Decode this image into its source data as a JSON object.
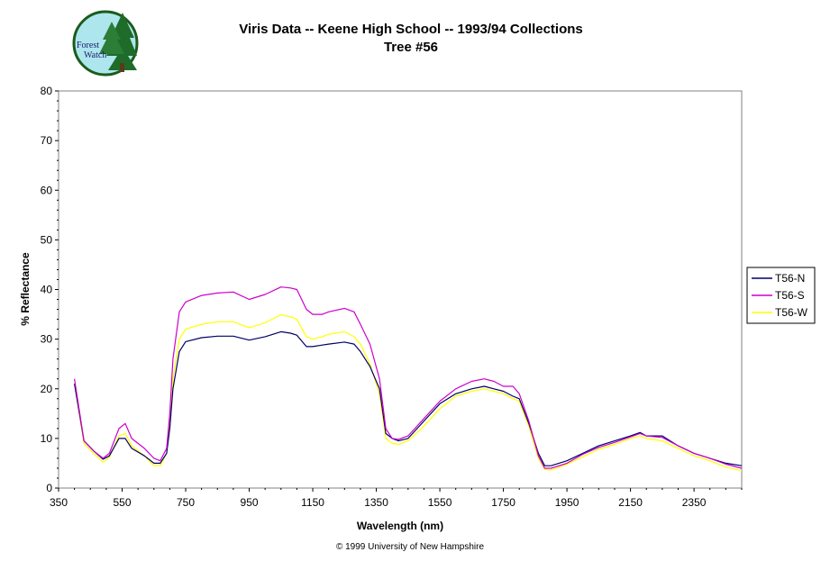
{
  "logo": {
    "line1": "Forest",
    "line2": "Watch"
  },
  "copyright": "© 1999 University of New Hampshire",
  "colors": {
    "T56-N": "#000066",
    "T56-S": "#cc00cc",
    "T56-W": "#ffff00"
  },
  "chart_data": {
    "type": "line",
    "title": "Viris Data -- Keene High School -- 1993/94 Collections",
    "subtitle": "Tree #56",
    "xlabel": "Wavelength (nm)",
    "ylabel": "% Reflectance",
    "xlim": [
      350,
      2500
    ],
    "ylim": [
      0,
      80
    ],
    "xticks": [
      350,
      550,
      750,
      950,
      1150,
      1350,
      1550,
      1750,
      1950,
      2150,
      2350
    ],
    "yticks": [
      0,
      10,
      20,
      30,
      40,
      50,
      60,
      70,
      80
    ],
    "grid": false,
    "legend_position": "right",
    "x": [
      400,
      430,
      460,
      490,
      510,
      540,
      560,
      580,
      620,
      650,
      670,
      690,
      700,
      710,
      730,
      750,
      800,
      850,
      900,
      950,
      1000,
      1050,
      1080,
      1100,
      1130,
      1150,
      1180,
      1200,
      1250,
      1280,
      1300,
      1330,
      1360,
      1380,
      1400,
      1420,
      1450,
      1500,
      1550,
      1600,
      1650,
      1690,
      1720,
      1750,
      1780,
      1800,
      1830,
      1860,
      1880,
      1900,
      1950,
      2000,
      2050,
      2100,
      2150,
      2180,
      2200,
      2250,
      2300,
      2350,
      2400,
      2450,
      2500
    ],
    "series": [
      {
        "name": "T56-N",
        "values": [
          21,
          9.5,
          7.5,
          5.8,
          6.5,
          10,
          10,
          8,
          6.5,
          5,
          5,
          7,
          12,
          20,
          27.5,
          29.5,
          30.3,
          30.6,
          30.6,
          29.8,
          30.5,
          31.5,
          31.2,
          30.8,
          28.5,
          28.5,
          28.8,
          29,
          29.4,
          29,
          27.5,
          24.5,
          20,
          11,
          10,
          9.5,
          10,
          13.5,
          17,
          19,
          20,
          20.5,
          20,
          19.5,
          18.5,
          18,
          13,
          7,
          4.5,
          4.5,
          5.5,
          7,
          8.5,
          9.5,
          10.5,
          11.2,
          10.5,
          10.5,
          8.5,
          7,
          6,
          5,
          4.5
        ]
      },
      {
        "name": "T56-S",
        "values": [
          22,
          9.5,
          7.5,
          6,
          7,
          12,
          13,
          10,
          8,
          6,
          5.5,
          8,
          15,
          26,
          35.5,
          37.5,
          38.8,
          39.3,
          39.5,
          38,
          39,
          40.5,
          40.3,
          40,
          36,
          35,
          35,
          35.5,
          36.2,
          35.5,
          33,
          29,
          22,
          12,
          10,
          9.8,
          10.5,
          14,
          17.5,
          20,
          21.5,
          22,
          21.5,
          20.5,
          20.5,
          19,
          13.5,
          6.5,
          4,
          4,
          5,
          6.8,
          8.2,
          9.2,
          10.3,
          11,
          10.5,
          10.2,
          8.5,
          7,
          6,
          4.8,
          4
        ]
      },
      {
        "name": "T56-W",
        "values": [
          21,
          9,
          7,
          5.2,
          6.2,
          10.5,
          11,
          8.5,
          6.5,
          4.5,
          4.5,
          7,
          13,
          22,
          30,
          32,
          33,
          33.5,
          33.5,
          32.3,
          33.3,
          34.9,
          34.5,
          34,
          30.5,
          30,
          30.5,
          31,
          31.5,
          30.5,
          29,
          25,
          19,
          10,
          9,
          8.8,
          9.5,
          12.5,
          16,
          18.5,
          19.5,
          20,
          19.5,
          19,
          18,
          17.5,
          12.5,
          6,
          3.8,
          3.6,
          4.8,
          6.3,
          7.8,
          8.8,
          10,
          10.5,
          10,
          9.5,
          8,
          6.5,
          5.5,
          4.2,
          3.5
        ]
      }
    ]
  }
}
